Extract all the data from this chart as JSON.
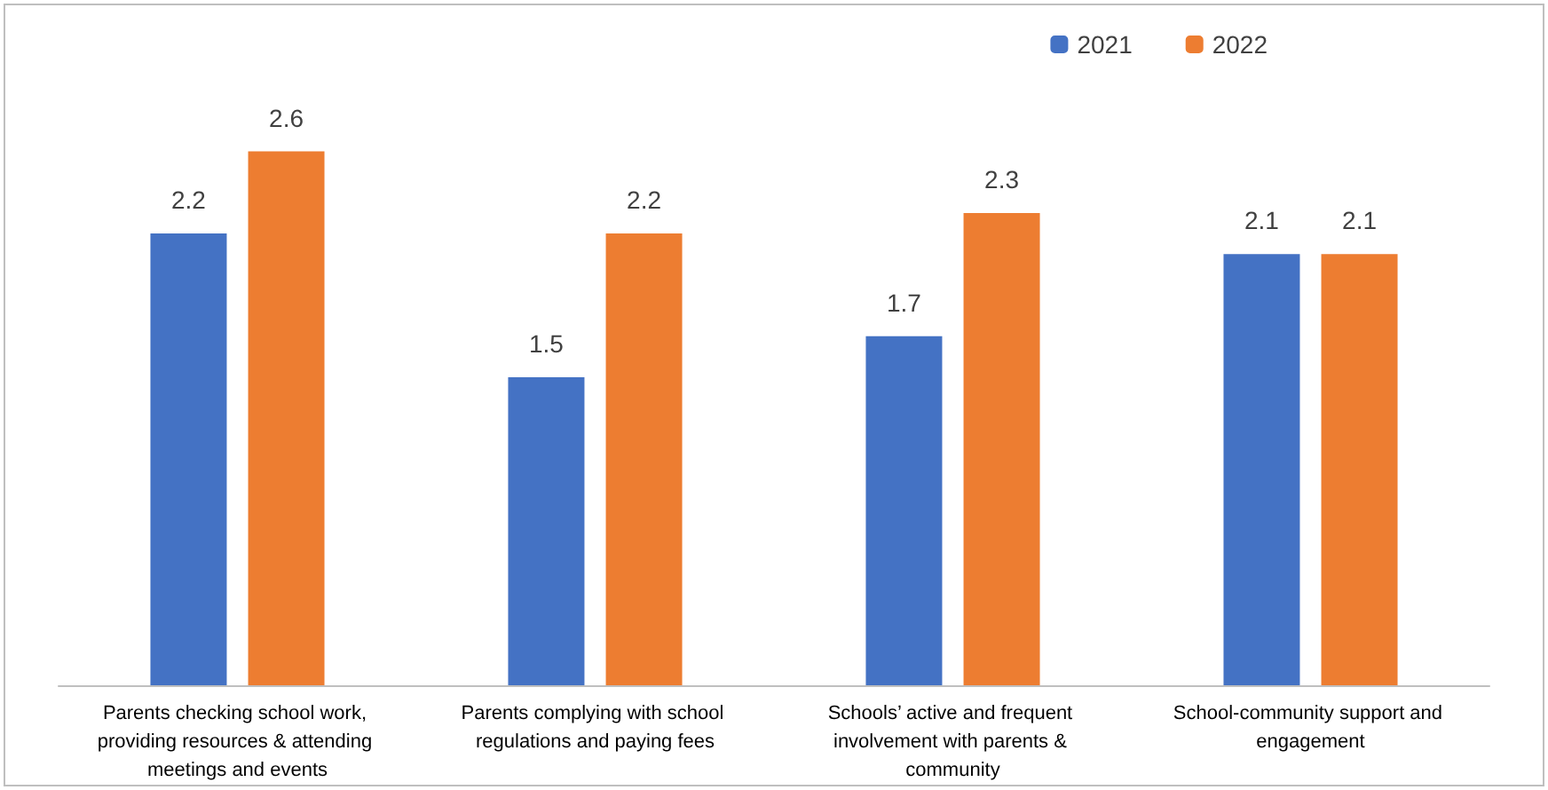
{
  "chart_data": {
    "type": "bar",
    "categories": [
      "Parents checking school work, providing resources & attending meetings and events",
      "Parents complying with school regulations and paying fees",
      "Schools’ active and frequent involvement with parents & community",
      "School-community support and engagement"
    ],
    "series": [
      {
        "name": "2021",
        "color": "#4472c4",
        "values": [
          2.2,
          1.5,
          1.7,
          2.1
        ]
      },
      {
        "name": "2022",
        "color": "#ed7d31",
        "values": [
          2.6,
          2.2,
          2.3,
          2.1
        ]
      }
    ],
    "data_labels": true,
    "legend": "top right"
  }
}
